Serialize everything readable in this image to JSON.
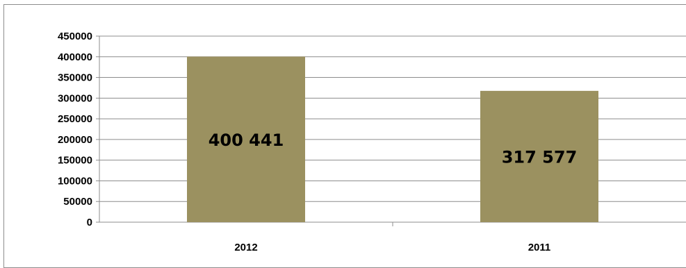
{
  "chart_data": {
    "type": "bar",
    "categories": [
      "2012",
      "2011"
    ],
    "values": [
      400441,
      317577
    ],
    "data_labels": [
      "400 441",
      "317 577"
    ],
    "ylim": [
      0,
      450000
    ],
    "yticks": [
      "0",
      "50000",
      "100000",
      "150000",
      "200000",
      "250000",
      "300000",
      "350000",
      "400000",
      "450000"
    ],
    "ytick_values": [
      0,
      50000,
      100000,
      150000,
      200000,
      250000,
      300000,
      350000,
      400000,
      450000
    ],
    "grid": true,
    "legend": "none",
    "bar_color": "#9b9160",
    "grid_color": "#8c8c8c"
  }
}
